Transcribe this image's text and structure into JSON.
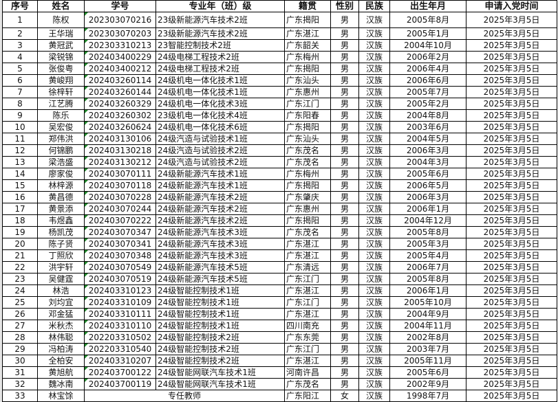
{
  "headers": [
    "序号",
    "姓名",
    "学号",
    "专业年（班）级",
    "籍贯",
    "性别",
    "民族",
    "出生年月",
    "申请入党时间"
  ],
  "rows": [
    [
      "1",
      "陈权",
      "202303070216",
      "23级新能源汽车技术2班",
      "广东揭阳",
      "男",
      "汉族",
      "2005年8月",
      "2025年3月5日"
    ],
    [
      "2",
      "王华瑞",
      "202303070203",
      "23级新能源汽车技术2班",
      "广东湛江",
      "男",
      "汉族",
      "2005年1月",
      "2025年3月5日"
    ],
    [
      "3",
      "黄冠武",
      "202303310213",
      "23智能控制技术2班",
      "广东韶关",
      "男",
      "汉族",
      "2004年10月",
      "2025年3月5日"
    ],
    [
      "4",
      "梁锐锦",
      "202403400229",
      "24级电梯工程技术2班",
      "广东梅州",
      "男",
      "汉族",
      "2006年2月",
      "2025年3月5日"
    ],
    [
      "5",
      "张俊粤",
      "202403400212",
      "24级电梯工程技术2班",
      "广东揭阳",
      "男",
      "汉族",
      "2006年4月",
      "2025年3月5日"
    ],
    [
      "6",
      "黄峻翔",
      "202403260114",
      "24级机电一体化技术1班",
      "广东汕头",
      "男",
      "汉族",
      "2006年6月",
      "2025年3月5日"
    ],
    [
      "7",
      "徐梓轩",
      "202403260144",
      "24级机电一体化技术1班",
      "广东惠州",
      "男",
      "汉族",
      "2005年7月",
      "2025年3月5日"
    ],
    [
      "8",
      "江艺腾",
      "202403260329",
      "24级机电一体化技术3班",
      "广东江门",
      "男",
      "汉族",
      "2005年2月",
      "2025年3月5日"
    ],
    [
      "9",
      "陈乐",
      "202403260302",
      "23级机电一体化技术4班",
      "广东阳春",
      "男",
      "汉族",
      "2004年8月",
      "2025年3月5日"
    ],
    [
      "10",
      "吴宏俊",
      "202403260624",
      "24级机电一体化技术6班",
      "广东揭阳",
      "男",
      "汉族",
      "2003年6月",
      "2025年3月5日"
    ],
    [
      "11",
      "郑伟洪",
      "202403130106",
      "24级汽造与试验技术1班",
      "广东汕头",
      "男",
      "汉族",
      "2004年5月",
      "2025年3月5日"
    ],
    [
      "12",
      "何锦鹏",
      "202403130218",
      "24级汽造与试验技术2班",
      "广东茂名",
      "男",
      "汉族",
      "2006年3月",
      "2025年3月5日"
    ],
    [
      "13",
      "梁浩盛",
      "202403130212",
      "24级汽造与试验技术2班",
      "广东茂名",
      "男",
      "汉族",
      "2004年3月",
      "2025年3月5日"
    ],
    [
      "14",
      "廖家俊",
      "202403070111",
      "24级新能源汽车技术1班",
      "广东梅州",
      "男",
      "汉族",
      "2005年6月",
      "2025年3月5日"
    ],
    [
      "15",
      "林梓源",
      "202403070118",
      "24级新能源汽车技术1班",
      "广东揭阳",
      "男",
      "汉族",
      "2006年5月",
      "2025年3月5日"
    ],
    [
      "16",
      "黄昌德",
      "202403070228",
      "24级新能源汽车技术2班",
      "广东肇庆",
      "男",
      "汉族",
      "2006年3月",
      "2025年3月5日"
    ],
    [
      "17",
      "黄景添",
      "202403070244",
      "24级新能源汽车技术2班",
      "广东惠州",
      "男",
      "汉族",
      "2006年1月",
      "2025年3月5日"
    ],
    [
      "18",
      "韦煜鑫",
      "202403070222",
      "24级新能源汽车技术2班",
      "广东揭阳",
      "男",
      "汉族",
      "2004年12月",
      "2025年3月5日"
    ],
    [
      "19",
      "杨凯茂",
      "202403070347",
      "24级新能源汽车技术3班",
      "广东茂名",
      "男",
      "汉族",
      "2005年8月",
      "2025年3月5日"
    ],
    [
      "20",
      "陈子贤",
      "202403070341",
      "24级新能源汽车技术3班",
      "广东湛江",
      "男",
      "汉族",
      "2005年3月",
      "2025年3月5日"
    ],
    [
      "21",
      "丁照欣",
      "202403070348",
      "24级新能源汽车技术3班",
      "广东湛江",
      "男",
      "汉族",
      "2005年4月",
      "2025年3月5日"
    ],
    [
      "22",
      "洪宇轩",
      "202403070549",
      "24级新能源汽车技术5班",
      "广东清远",
      "男",
      "汉族",
      "2006年7月",
      "2025年3月5日"
    ],
    [
      "23",
      "吴健霆",
      "202403070519",
      "24级新能源汽车技术5班",
      "广东江门",
      "男",
      "汉族",
      "2005年8月",
      "2025年3月5日"
    ],
    [
      "24",
      "林浩",
      "202403310123",
      "24级智能控制技术1班",
      "广东湛江",
      "男",
      "汉族",
      "2006年1月",
      "2025年3月5日"
    ],
    [
      "25",
      "刘均宜",
      "202403310109",
      "24级智能控制技术1班",
      "广东江门",
      "男",
      "汉族",
      "2005年10月",
      "2025年3月5日"
    ],
    [
      "26",
      "邓金猛",
      "202403310111",
      "24级智能控制技术1班",
      "广东湛江",
      "男",
      "汉族",
      "2004年9月",
      "2025年3月5日"
    ],
    [
      "27",
      "米秋杰",
      "202403310110",
      "24级智能控制技术1班",
      "四川南充",
      "男",
      "汉族",
      "2004年11月",
      "2025年3月5日"
    ],
    [
      "28",
      "林伟聪",
      "202203310502",
      "24级智能控制技术2班",
      "广东东莞",
      "男",
      "汉族",
      "2002年8月",
      "2025年3月5日"
    ],
    [
      "29",
      "冯柏涛",
      "202203310540",
      "24级智能控制技术2班",
      "广东江门",
      "男",
      "汉族",
      "2003年7月",
      "2025年3月5日"
    ],
    [
      "30",
      "全柏安",
      "202403310207",
      "24级智能控制技术2班",
      "广东湛江",
      "男",
      "汉族",
      "2005年11月",
      "2025年3月5日"
    ],
    [
      "31",
      "黄旭航",
      "202403700122",
      "24级智能网联汽车技术1班",
      "河南许昌",
      "男",
      "汉族",
      "2005年6月",
      "2025年3月5日"
    ],
    [
      "32",
      "魏冰南",
      "202403700119",
      "24级智能网联汽车技术1班",
      "广东茂名",
      "男",
      "汉族",
      "2002年9月",
      "2025年3月5日"
    ]
  ],
  "last_row": {
    "no": "33",
    "name": "林宝馀",
    "role": "专任教师",
    "origin": "广东阳江",
    "gender": "女",
    "ethnicity": "汉族",
    "birth": "1998年7月",
    "apply_date": "2025年3月5日"
  }
}
